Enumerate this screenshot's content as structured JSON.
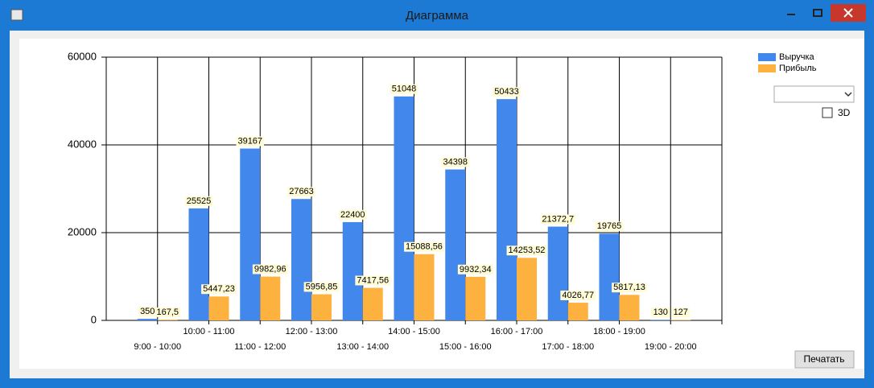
{
  "window": {
    "title": "Диаграмма"
  },
  "chart_data": {
    "type": "bar",
    "categories": [
      "9:00 - 10:00",
      "10:00 - 11:00",
      "11:00 - 12:00",
      "12:00 - 13:00",
      "13:00 - 14:00",
      "14:00 - 15:00",
      "15:00 - 16:00",
      "16:00 - 17:00",
      "17:00 - 18:00",
      "18:00 - 19:00",
      "19:00 - 20:00"
    ],
    "series": [
      {
        "name": "Выручка",
        "color": "#4187ec",
        "values": [
          350,
          25525,
          39167,
          27663,
          22400,
          51048,
          34398,
          50433,
          21372.7,
          19765,
          130
        ],
        "value_labels": [
          "350",
          "25525",
          "39167",
          "27663",
          "22400",
          "51048",
          "34398",
          "50433",
          "21372,7",
          "19765",
          "130"
        ]
      },
      {
        "name": "Прибыль",
        "color": "#fdb13f",
        "values": [
          167.5,
          5447.23,
          9982.96,
          5956.85,
          7417.56,
          15088.56,
          9932.34,
          14253.52,
          4026.77,
          5817.13,
          127
        ],
        "value_labels": [
          "167,5",
          "5447,23",
          "9982,96",
          "5956,85",
          "7417,56",
          "15088,56",
          "9932,34",
          "14253,52",
          "4026,77",
          "5817,13",
          "127"
        ]
      }
    ],
    "ylim": [
      0,
      60000
    ],
    "yticks": [
      0,
      20000,
      40000,
      60000
    ],
    "grid": true,
    "legend": "top-right"
  },
  "controls": {
    "checkbox_label": "3D",
    "button": "Печатать"
  }
}
